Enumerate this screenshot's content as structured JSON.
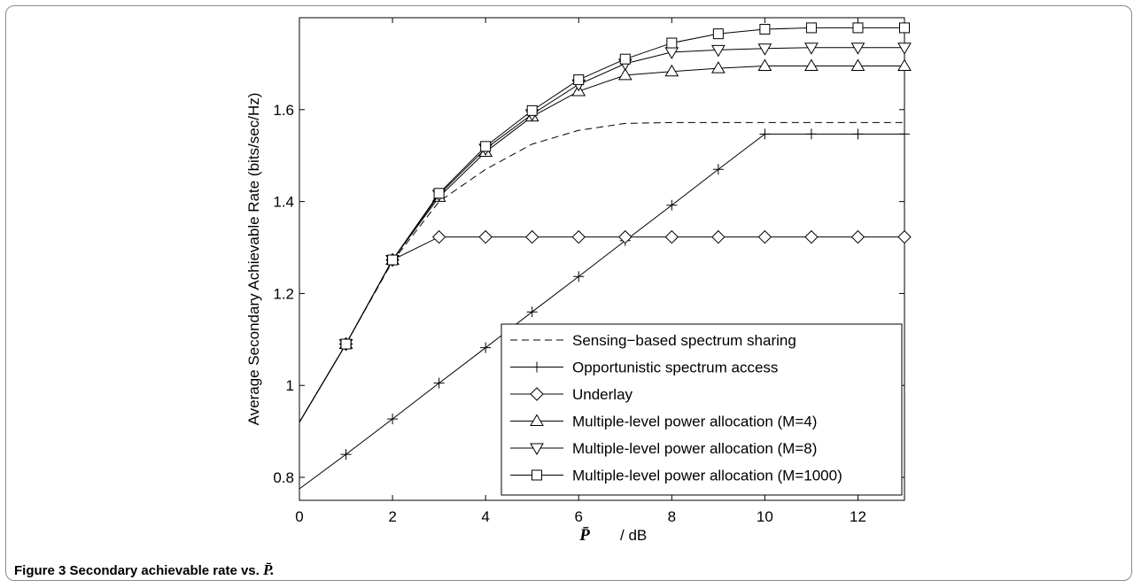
{
  "figure": {
    "caption_label": "Figure 3",
    "caption_text": "Secondary achievable rate vs.",
    "caption_symbol": "P̄."
  },
  "chart_data": {
    "type": "line",
    "xlabel_symbol": "P̄",
    "xlabel_unit": "/ dB",
    "ylabel": "Average Secondary Achievable Rate (bits/sec/Hz)",
    "xlim": [
      0,
      13
    ],
    "ylim": [
      0.75,
      1.8
    ],
    "xticks": [
      0,
      2,
      4,
      6,
      8,
      10,
      12
    ],
    "yticks": [
      0.8,
      1,
      1.2,
      1.4,
      1.6
    ],
    "ytick_labels": [
      "0.8",
      "1",
      "1.2",
      "1.4",
      "1.6"
    ],
    "grid": false,
    "legend_position": "bottom-right",
    "series": [
      {
        "name": "Sensing−based spectrum sharing",
        "style": "dashed",
        "marker": "none",
        "x": [
          0,
          1,
          2,
          3,
          4,
          5,
          6,
          7,
          8,
          9,
          10,
          11,
          12,
          13
        ],
        "y": [
          0.92,
          1.09,
          1.27,
          1.4,
          1.47,
          1.525,
          1.555,
          1.57,
          1.572,
          1.572,
          1.572,
          1.572,
          1.572,
          1.572
        ]
      },
      {
        "name": "Opportunistic spectrum access",
        "style": "solid",
        "marker": "plus",
        "x": [
          0,
          1,
          2,
          3,
          4,
          5,
          6,
          7,
          8,
          9,
          10,
          11,
          12,
          13
        ],
        "y": [
          0.775,
          0.85,
          0.927,
          1.005,
          1.082,
          1.16,
          1.237,
          1.315,
          1.392,
          1.47,
          1.547,
          1.547,
          1.547,
          1.547
        ]
      },
      {
        "name": "Underlay",
        "style": "solid",
        "marker": "diamond",
        "x": [
          0,
          1,
          2,
          3,
          4,
          5,
          6,
          7,
          8,
          9,
          10,
          11,
          12,
          13
        ],
        "y": [
          0.92,
          1.09,
          1.273,
          1.323,
          1.323,
          1.323,
          1.323,
          1.323,
          1.323,
          1.323,
          1.323,
          1.323,
          1.323,
          1.323
        ]
      },
      {
        "name": "Multiple-level power allocation (M=4)",
        "style": "solid",
        "marker": "triangle-up",
        "x": [
          0,
          1,
          2,
          3,
          4,
          5,
          6,
          7,
          8,
          9,
          10,
          11,
          12,
          13
        ],
        "y": [
          0.92,
          1.09,
          1.273,
          1.41,
          1.508,
          1.585,
          1.64,
          1.675,
          1.683,
          1.69,
          1.695,
          1.695,
          1.695,
          1.695
        ]
      },
      {
        "name": "Multiple-level power allocation (M=8)",
        "style": "solid",
        "marker": "triangle-down",
        "x": [
          0,
          1,
          2,
          3,
          4,
          5,
          6,
          7,
          8,
          9,
          10,
          11,
          12,
          13
        ],
        "y": [
          0.92,
          1.09,
          1.273,
          1.415,
          1.515,
          1.59,
          1.655,
          1.7,
          1.725,
          1.73,
          1.733,
          1.735,
          1.735,
          1.735
        ]
      },
      {
        "name": "Multiple-level power allocation (M=1000)",
        "style": "solid",
        "marker": "square",
        "x": [
          0,
          1,
          2,
          3,
          4,
          5,
          6,
          7,
          8,
          9,
          10,
          11,
          12,
          13
        ],
        "y": [
          0.92,
          1.09,
          1.273,
          1.418,
          1.52,
          1.598,
          1.665,
          1.71,
          1.745,
          1.765,
          1.775,
          1.778,
          1.778,
          1.778
        ]
      }
    ]
  }
}
